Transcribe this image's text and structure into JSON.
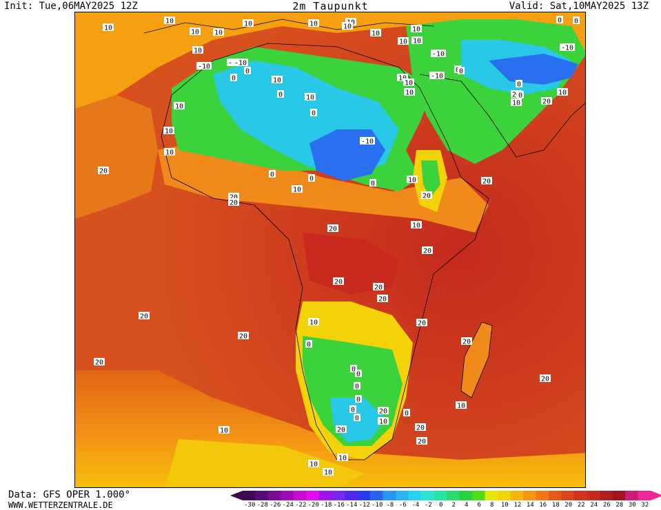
{
  "header": {
    "init": "Init: Tue,06MAY2025 12Z",
    "title": "2m Taupunkt",
    "valid": "Valid: Sat,10MAY2025 13Z"
  },
  "footer": {
    "data_source": "Data: GFS OPER 1.000°",
    "url": "WWW.WETTERZENTRALE.DE"
  },
  "colors": {
    "frame": "#000000",
    "ocean_warm": "#d8501e",
    "ocean_hot": "#c42a1e",
    "sahel_orange": "#f08a1a",
    "dry_green": "#3cd23c",
    "dry_cyan": "#28c8e6",
    "dry_blue": "#2870f0",
    "yellow": "#f4d20a"
  },
  "legend": {
    "unit_note": "",
    "values": [
      "-30",
      "-28",
      "-26",
      "-24",
      "-22",
      "-20",
      "-18",
      "-16",
      "-14",
      "-12",
      "-10",
      "-8",
      "-6",
      "-4",
      "-2",
      "0",
      "2",
      "4",
      "6",
      "8",
      "10",
      "12",
      "14",
      "16",
      "18",
      "20",
      "22",
      "24",
      "26",
      "28",
      "30",
      "32"
    ],
    "colors": [
      "#3c0a50",
      "#5a0a78",
      "#780a96",
      "#a00ab4",
      "#c80ad2",
      "#e60af0",
      "#a014f0",
      "#7828f0",
      "#5028f0",
      "#283cf0",
      "#2864f0",
      "#2896f0",
      "#28b4f0",
      "#28d2f0",
      "#28e6d2",
      "#28e6a0",
      "#28dc6e",
      "#28d23c",
      "#50dc1e",
      "#e6e60a",
      "#f4d20a",
      "#f4b40a",
      "#f49614",
      "#f07814",
      "#e65a14",
      "#dc461e",
      "#d2321e",
      "#c8281e",
      "#b41e1e",
      "#a0141e",
      "#c81e78",
      "#f02896"
    ]
  },
  "contour_labels": [
    {
      "text": "10"
    },
    {
      "text": "10"
    },
    {
      "text": "10"
    },
    {
      "text": "10"
    },
    {
      "text": "10"
    },
    {
      "text": "10"
    },
    {
      "text": "10"
    },
    {
      "text": "10"
    },
    {
      "text": "10"
    },
    {
      "text": "10"
    },
    {
      "text": "10"
    },
    {
      "text": "10"
    },
    {
      "text": "0"
    },
    {
      "text": "0"
    },
    {
      "text": "-10"
    },
    {
      "text": "-10"
    },
    {
      "text": "10"
    },
    {
      "text": "-10"
    },
    {
      "text": "-10"
    },
    {
      "text": "0"
    },
    {
      "text": "0"
    },
    {
      "text": "10"
    },
    {
      "text": "10"
    },
    {
      "text": "10"
    },
    {
      "text": "-10"
    },
    {
      "text": "0"
    },
    {
      "text": "10"
    },
    {
      "text": "0"
    },
    {
      "text": "20"
    },
    {
      "text": "10"
    },
    {
      "text": "10"
    },
    {
      "text": "20"
    },
    {
      "text": "10"
    },
    {
      "text": "20"
    },
    {
      "text": "10"
    },
    {
      "text": "0"
    },
    {
      "text": "0"
    },
    {
      "text": "0"
    },
    {
      "text": "10"
    },
    {
      "text": "-10"
    },
    {
      "text": "-10"
    },
    {
      "text": "0"
    },
    {
      "text": "10"
    },
    {
      "text": "0"
    },
    {
      "text": "20"
    },
    {
      "text": "10"
    },
    {
      "text": "0"
    },
    {
      "text": "0"
    },
    {
      "text": "10"
    },
    {
      "text": "20"
    },
    {
      "text": "20"
    },
    {
      "text": "20"
    },
    {
      "text": "20"
    },
    {
      "text": "10"
    },
    {
      "text": "20"
    },
    {
      "text": "20"
    },
    {
      "text": "20"
    },
    {
      "text": "20"
    },
    {
      "text": "20"
    },
    {
      "text": "20"
    },
    {
      "text": "20"
    },
    {
      "text": "10"
    },
    {
      "text": "20"
    },
    {
      "text": "20"
    },
    {
      "text": "20"
    },
    {
      "text": "0"
    },
    {
      "text": "20"
    },
    {
      "text": "0"
    },
    {
      "text": "0"
    },
    {
      "text": "0"
    },
    {
      "text": "0"
    },
    {
      "text": "0"
    },
    {
      "text": "0"
    },
    {
      "text": "20"
    },
    {
      "text": "10"
    },
    {
      "text": "20"
    },
    {
      "text": "0"
    },
    {
      "text": "10"
    },
    {
      "text": "20"
    },
    {
      "text": "10"
    },
    {
      "text": "10"
    },
    {
      "text": "10"
    },
    {
      "text": "10"
    }
  ]
}
